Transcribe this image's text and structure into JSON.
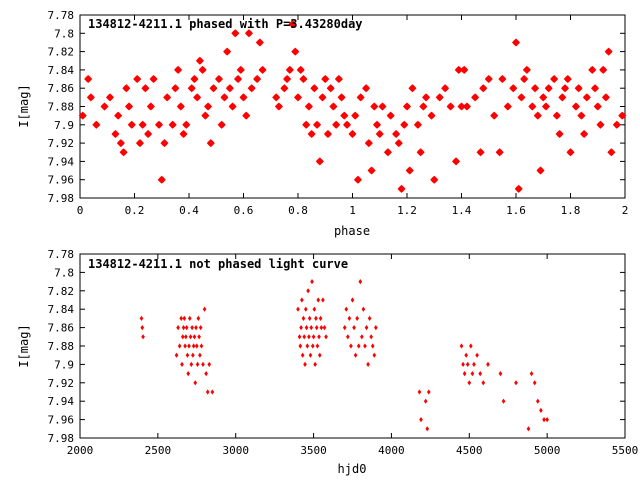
{
  "chart_data": [
    {
      "type": "scatter",
      "title": "134812-4211.1 phased with P=3.43280day",
      "xlabel": "phase",
      "ylabel": "I[mag]",
      "xlim": [
        0,
        2
      ],
      "ylim": [
        7.98,
        7.78
      ],
      "y_inverted": true,
      "xticks": [
        0,
        0.2,
        0.4,
        0.6,
        0.8,
        1,
        1.2,
        1.4,
        1.6,
        1.8,
        2
      ],
      "yticks": [
        7.78,
        7.8,
        7.82,
        7.84,
        7.86,
        7.88,
        7.9,
        7.92,
        7.94,
        7.96,
        7.98
      ],
      "xtick_labels": [
        "0",
        "0.2",
        "0.4",
        "0.6",
        "0.8",
        "1",
        "1.2",
        "1.4",
        "1.6",
        "1.8",
        "2"
      ],
      "ytick_labels": [
        "7.78",
        "7.8",
        "7.82",
        "7.84",
        "7.86",
        "7.88",
        "7.9",
        "7.92",
        "7.94",
        "7.96",
        "7.98"
      ],
      "marker": "star",
      "color": "#ff0000",
      "grid": false,
      "x": [
        0.01,
        0.03,
        0.04,
        0.06,
        0.09,
        0.11,
        0.13,
        0.14,
        0.15,
        0.16,
        0.17,
        0.18,
        0.19,
        0.21,
        0.22,
        0.23,
        0.24,
        0.25,
        0.26,
        0.27,
        0.29,
        0.3,
        0.31,
        0.32,
        0.34,
        0.35,
        0.36,
        0.37,
        0.38,
        0.39,
        0.41,
        0.42,
        0.43,
        0.44,
        0.45,
        0.46,
        0.47,
        0.48,
        0.49,
        0.51,
        0.52,
        0.53,
        0.54,
        0.55,
        0.56,
        0.57,
        0.58,
        0.59,
        0.6,
        0.61,
        0.62,
        0.63,
        0.65,
        0.66,
        0.67,
        0.72,
        0.73,
        0.75,
        0.76,
        0.77,
        0.78,
        0.79,
        0.8,
        0.81,
        0.82,
        0.83,
        0.84,
        0.85,
        0.86,
        0.87,
        0.88,
        0.89,
        0.9,
        0.91,
        0.92,
        0.93,
        0.94,
        0.95,
        0.96,
        0.97,
        0.98,
        1.0,
        1.01,
        1.02,
        1.03,
        1.05,
        1.06,
        1.07,
        1.08,
        1.09,
        1.1,
        1.11,
        1.13,
        1.14,
        1.16,
        1.17,
        1.18,
        1.19,
        1.2,
        1.21,
        1.22,
        1.24,
        1.25,
        1.26,
        1.27,
        1.29,
        1.3,
        1.32,
        1.34,
        1.36,
        1.38,
        1.39,
        1.4,
        1.41,
        1.42,
        1.45,
        1.47,
        1.48,
        1.5,
        1.52,
        1.54,
        1.55,
        1.57,
        1.59,
        1.6,
        1.61,
        1.62,
        1.63,
        1.64,
        1.66,
        1.67,
        1.68,
        1.69,
        1.7,
        1.71,
        1.72,
        1.74,
        1.75,
        1.76,
        1.77,
        1.78,
        1.79,
        1.8,
        1.82,
        1.83,
        1.84,
        1.85,
        1.86,
        1.88,
        1.89,
        1.9,
        1.91,
        1.92,
        1.93,
        1.94,
        1.95,
        1.97,
        1.99
      ],
      "y": [
        7.89,
        7.85,
        7.87,
        7.9,
        7.88,
        7.87,
        7.91,
        7.89,
        7.92,
        7.93,
        7.86,
        7.88,
        7.9,
        7.85,
        7.92,
        7.9,
        7.86,
        7.91,
        7.88,
        7.85,
        7.9,
        7.96,
        7.92,
        7.87,
        7.9,
        7.86,
        7.84,
        7.88,
        7.91,
        7.9,
        7.86,
        7.85,
        7.87,
        7.83,
        7.84,
        7.89,
        7.88,
        7.92,
        7.86,
        7.85,
        7.9,
        7.87,
        7.82,
        7.86,
        7.88,
        7.8,
        7.85,
        7.84,
        7.87,
        7.89,
        7.8,
        7.86,
        7.85,
        7.81,
        7.84,
        7.87,
        7.88,
        7.86,
        7.85,
        7.84,
        7.79,
        7.82,
        7.87,
        7.84,
        7.85,
        7.9,
        7.88,
        7.91,
        7.86,
        7.9,
        7.94,
        7.87,
        7.85,
        7.91,
        7.86,
        7.88,
        7.9,
        7.85,
        7.87,
        7.89,
        7.9,
        7.91,
        7.89,
        7.96,
        7.87,
        7.86,
        7.92,
        7.95,
        7.88,
        7.9,
        7.91,
        7.88,
        7.93,
        7.89,
        7.91,
        7.92,
        7.97,
        7.9,
        7.88,
        7.95,
        7.86,
        7.9,
        7.93,
        7.88,
        7.87,
        7.89,
        7.96,
        7.87,
        7.86,
        7.88,
        7.94,
        7.84,
        7.88,
        7.84,
        7.88,
        7.87,
        7.93,
        7.86,
        7.85,
        7.89,
        7.93,
        7.85,
        7.88,
        7.86,
        7.81,
        7.97,
        7.87,
        7.85,
        7.84,
        7.88,
        7.86,
        7.89,
        7.95,
        7.87,
        7.88,
        7.86,
        7.85,
        7.89,
        7.91,
        7.87,
        7.86,
        7.85,
        7.93,
        7.88,
        7.86,
        7.89,
        7.91,
        7.87,
        7.84,
        7.86,
        7.88,
        7.9,
        7.84,
        7.87,
        7.82,
        7.93,
        7.9,
        7.89
      ],
      "plot_id": "phased"
    },
    {
      "type": "scatter",
      "title": "134812-4211.1 not phased light curve",
      "xlabel": "hjd0",
      "ylabel": "I[mag]",
      "xlim": [
        2000,
        5500
      ],
      "ylim": [
        7.98,
        7.78
      ],
      "y_inverted": true,
      "xticks": [
        2000,
        2500,
        3000,
        3500,
        4000,
        4500,
        5000,
        5500
      ],
      "yticks": [
        7.78,
        7.8,
        7.82,
        7.84,
        7.86,
        7.88,
        7.9,
        7.92,
        7.94,
        7.96,
        7.98
      ],
      "xtick_labels": [
        "2000",
        "2500",
        "3000",
        "3500",
        "4000",
        "4500",
        "5000",
        "5500"
      ],
      "ytick_labels": [
        "7.78",
        "7.8",
        "7.82",
        "7.84",
        "7.86",
        "7.88",
        "7.9",
        "7.92",
        "7.94",
        "7.96",
        "7.98"
      ],
      "marker": "diamond",
      "color": "#ff0000",
      "grid": false,
      "x": [
        2395,
        2400,
        2405,
        2620,
        2630,
        2640,
        2650,
        2655,
        2660,
        2665,
        2670,
        2675,
        2680,
        2685,
        2690,
        2695,
        2700,
        2705,
        2710,
        2715,
        2720,
        2725,
        2730,
        2735,
        2740,
        2745,
        2750,
        2755,
        2760,
        2765,
        2770,
        2775,
        2780,
        2790,
        2800,
        2810,
        2820,
        2830,
        2850,
        3400,
        3410,
        3415,
        3420,
        3425,
        3430,
        3435,
        3440,
        3445,
        3450,
        3455,
        3460,
        3465,
        3470,
        3475,
        3480,
        3485,
        3490,
        3495,
        3500,
        3505,
        3510,
        3515,
        3520,
        3525,
        3530,
        3535,
        3540,
        3545,
        3550,
        3560,
        3570,
        3580,
        3700,
        3710,
        3720,
        3730,
        3740,
        3750,
        3760,
        3770,
        3780,
        3790,
        3800,
        3810,
        3820,
        3830,
        3840,
        3850,
        3860,
        3870,
        3880,
        3890,
        3900,
        4180,
        4190,
        4220,
        4230,
        4240,
        4450,
        4460,
        4470,
        4480,
        4490,
        4500,
        4510,
        4520,
        4530,
        4550,
        4570,
        4590,
        4620,
        4700,
        4720,
        4800,
        4880,
        4900,
        4920,
        4940,
        4960,
        4980,
        5000
      ],
      "y": [
        7.85,
        7.86,
        7.87,
        7.89,
        7.86,
        7.88,
        7.85,
        7.9,
        7.87,
        7.86,
        7.85,
        7.88,
        7.87,
        7.86,
        7.89,
        7.91,
        7.88,
        7.85,
        7.87,
        7.9,
        7.86,
        7.89,
        7.88,
        7.87,
        7.92,
        7.86,
        7.88,
        7.9,
        7.85,
        7.87,
        7.89,
        7.86,
        7.88,
        7.9,
        7.84,
        7.91,
        7.93,
        7.9,
        7.93,
        7.84,
        7.87,
        7.88,
        7.86,
        7.83,
        7.89,
        7.85,
        7.87,
        7.9,
        7.84,
        7.86,
        7.88,
        7.82,
        7.87,
        7.85,
        7.89,
        7.86,
        7.81,
        7.88,
        7.87,
        7.84,
        7.9,
        7.85,
        7.86,
        7.88,
        7.83,
        7.87,
        7.89,
        7.85,
        7.86,
        7.83,
        7.86,
        7.87,
        7.86,
        7.84,
        7.87,
        7.85,
        7.88,
        7.83,
        7.86,
        7.89,
        7.85,
        7.88,
        7.81,
        7.87,
        7.84,
        7.88,
        7.86,
        7.9,
        7.85,
        7.87,
        7.88,
        7.89,
        7.86,
        7.93,
        7.96,
        7.94,
        7.97,
        7.93,
        7.88,
        7.9,
        7.91,
        7.89,
        7.9,
        7.92,
        7.88,
        7.91,
        7.9,
        7.89,
        7.91,
        7.92,
        7.9,
        7.91,
        7.94,
        7.92,
        7.97,
        7.91,
        7.92,
        7.94,
        7.95,
        7.96,
        7.96
      ],
      "plot_id": "unphased"
    }
  ]
}
